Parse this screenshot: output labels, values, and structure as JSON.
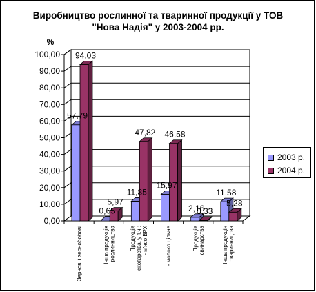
{
  "chart_data": {
    "type": "bar",
    "title": "Виробництво рослинної та тваринної продукції у ТОВ \"Нова Надія\" у 2003-2004 рр.",
    "title_lines": [
      "Виробництво рослинної та тваринної продукції у ТОВ",
      "\"Нова Надія\" у 2003-2004 рр."
    ],
    "ylabel": "%",
    "ylim": [
      0,
      100
    ],
    "y_ticks": [
      "0,00",
      "10,00",
      "20,00",
      "30,00",
      "40,00",
      "50,00",
      "60,00",
      "70,00",
      "80,00",
      "90,00",
      "100,00"
    ],
    "categories": [
      [
        "Зернові і зернобобові"
      ],
      [
        "Інша продукція",
        "рослинництва"
      ],
      [
        "Продукція",
        "скотарства, у т.ч.:",
        "- м'ясо ВРХ"
      ],
      [
        "- молоко цільне"
      ],
      [
        "Продукція",
        "свинарства"
      ],
      [
        "Інша продукція",
        "тваринництва"
      ]
    ],
    "series": [
      {
        "name": "2003 р.",
        "color": "#9999ff",
        "values": [
          57.79,
          0.65,
          11.85,
          15.97,
          2.16,
          11.58
        ],
        "labels": [
          "57,79",
          "0,65",
          "11,85",
          "15,97",
          "2,16",
          "11,58"
        ]
      },
      {
        "name": "2004 р.",
        "color": "#993366",
        "values": [
          94.03,
          5.97,
          47.82,
          46.58,
          0.33,
          5.28
        ],
        "labels": [
          "94,03",
          "5,97",
          "47,82",
          "46,58",
          "0,33",
          "5,28"
        ]
      }
    ],
    "grid": true,
    "legend_position": "right"
  }
}
